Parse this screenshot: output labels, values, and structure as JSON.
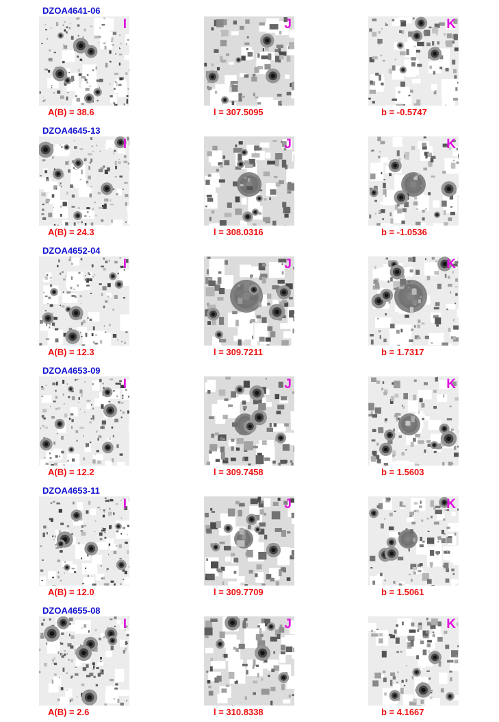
{
  "colors": {
    "object_name": "#1010d0",
    "band_letter": "#e010e0",
    "caption": "#ee1010"
  },
  "bands": [
    "I",
    "J",
    "K"
  ],
  "objects": [
    {
      "name": "DZOA4641-06",
      "ab": "A(B) = 38.6",
      "l": "l = 307.5095",
      "b": "b = -0.5747"
    },
    {
      "name": "DZOA4645-13",
      "ab": "A(B) = 24.3",
      "l": "l = 308.0316",
      "b": "b = -1.0536"
    },
    {
      "name": "DZOA4652-04",
      "ab": "A(B) = 12.3",
      "l": "l = 309.7211",
      "b": "b = 1.7317"
    },
    {
      "name": "DZOA4653-09",
      "ab": "A(B) = 12.2",
      "l": "l = 309.7458",
      "b": "b = 1.5603"
    },
    {
      "name": "DZOA4653-11",
      "ab": "A(B) = 12.0",
      "l": "l = 309.7709",
      "b": "b = 1.5061"
    },
    {
      "name": "DZOA4655-08",
      "ab": "A(B) = 2.6",
      "l": "l = 310.8338",
      "b": "b = 4.1667"
    }
  ]
}
